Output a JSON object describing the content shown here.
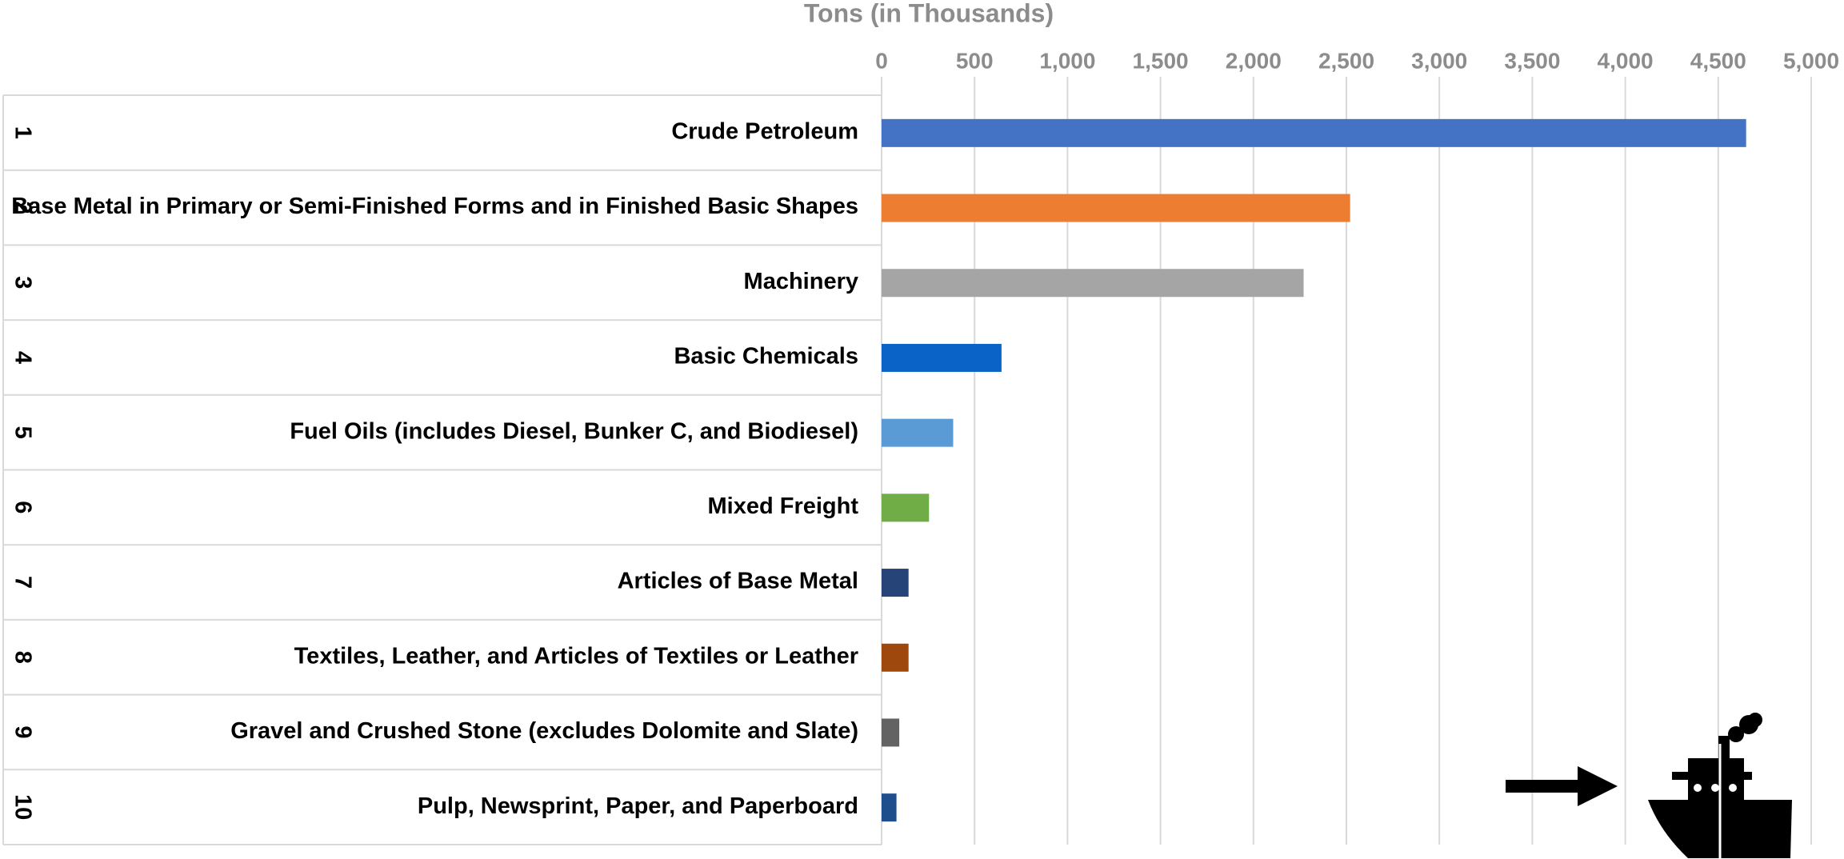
{
  "chart_data": {
    "type": "barh",
    "xlabel": "Tons  (in Thousands)",
    "ranks": [
      "1",
      "2",
      "3",
      "4",
      "5",
      "6",
      "7",
      "8",
      "9",
      "10"
    ],
    "categories": [
      "Crude Petroleum",
      "Base Metal in Primary or Semi-Finished Forms and in Finished Basic Shapes",
      "Machinery",
      "Basic Chemicals",
      "Fuel Oils (includes Diesel, Bunker C, and Biodiesel)",
      "Mixed Freight",
      "Articles of Base Metal",
      "Textiles, Leather, and Articles of Textiles or Leather",
      "Gravel and Crushed Stone (excludes Dolomite and Slate)",
      "Pulp, Newsprint, Paper, and Paperboard"
    ],
    "values": [
      4650,
      2520,
      2270,
      645,
      385,
      255,
      145,
      145,
      95,
      80
    ],
    "colors": [
      "#4472c4",
      "#ed7d31",
      "#a5a5a5",
      "#0a64c8",
      "#5b9bd5",
      "#70ad47",
      "#264478",
      "#9e480e",
      "#636363",
      "#1f4e8c"
    ],
    "xlim": [
      0,
      5000
    ],
    "xticks": [
      0,
      500,
      {
        "value": 1000,
        "label": "1,000"
      },
      {
        "value": 1500,
        "label": "1,500"
      },
      {
        "value": 2000,
        "label": "2,000"
      },
      {
        "value": 2500,
        "label": "2,500"
      },
      {
        "value": 3000,
        "label": "3,000"
      },
      {
        "value": 3500,
        "label": "3,500"
      },
      {
        "value": 4000,
        "label": "4,000"
      },
      {
        "value": 4500,
        "label": "4,500"
      },
      {
        "value": 5000,
        "label": "5,000"
      }
    ],
    "grid": true
  }
}
